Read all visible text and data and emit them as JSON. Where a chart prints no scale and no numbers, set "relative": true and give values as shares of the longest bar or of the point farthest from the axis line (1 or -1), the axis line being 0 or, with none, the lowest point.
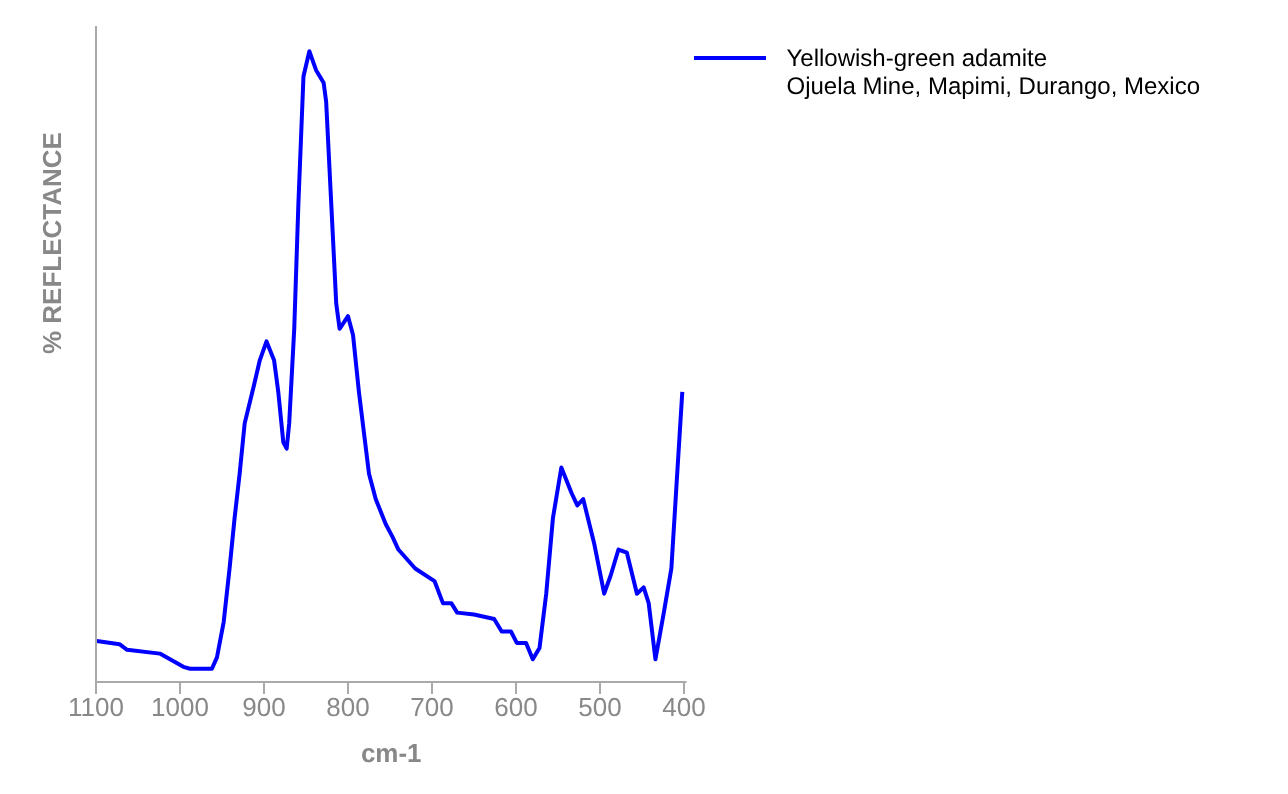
{
  "chart_data": {
    "type": "line",
    "relative": true,
    "xlabel": "cm-1",
    "ylabel": "%  REFLECTANCE",
    "legend": "top right",
    "marker": "none",
    "line_style": "solid",
    "annotations": [
      "Ojuela Mine, Mapimi, Durango, Mexico"
    ],
    "xlim": [
      1100,
      397
    ],
    "xticks": [
      1100,
      1000,
      900,
      800,
      700,
      600,
      500,
      400
    ],
    "series": [
      {
        "name": "Yellowish-green adamite",
        "color": "#0000ff",
        "x": [
          1099,
          1072,
          1063,
          1024,
          996,
          988,
          962,
          956,
          948,
          941,
          935,
          929,
          923,
          912,
          905,
          897,
          888,
          883,
          877,
          873,
          870,
          864,
          859,
          853,
          846,
          838,
          829,
          826,
          820,
          814,
          810,
          800,
          794,
          787,
          775,
          767,
          755,
          747,
          740,
          720,
          697,
          687,
          677,
          670,
          650,
          626,
          617,
          606,
          599,
          588,
          580,
          572,
          564,
          556,
          546,
          534,
          527,
          520,
          507,
          495,
          487,
          478,
          468,
          456,
          448,
          442,
          434,
          424,
          415,
          409,
          402
        ],
        "values": [
          0.065,
          0.06,
          0.051,
          0.045,
          0.024,
          0.021,
          0.021,
          0.039,
          0.095,
          0.18,
          0.26,
          0.33,
          0.41,
          0.47,
          0.51,
          0.54,
          0.51,
          0.46,
          0.38,
          0.37,
          0.41,
          0.56,
          0.76,
          0.96,
          1.0,
          0.97,
          0.95,
          0.92,
          0.76,
          0.6,
          0.56,
          0.58,
          0.55,
          0.46,
          0.33,
          0.29,
          0.25,
          0.23,
          0.21,
          0.18,
          0.16,
          0.125,
          0.125,
          0.11,
          0.107,
          0.1,
          0.08,
          0.08,
          0.062,
          0.062,
          0.036,
          0.054,
          0.14,
          0.26,
          0.34,
          0.3,
          0.28,
          0.29,
          0.22,
          0.14,
          0.17,
          0.21,
          0.205,
          0.14,
          0.15,
          0.125,
          0.036,
          0.11,
          0.18,
          0.31,
          0.46
        ]
      }
    ]
  }
}
